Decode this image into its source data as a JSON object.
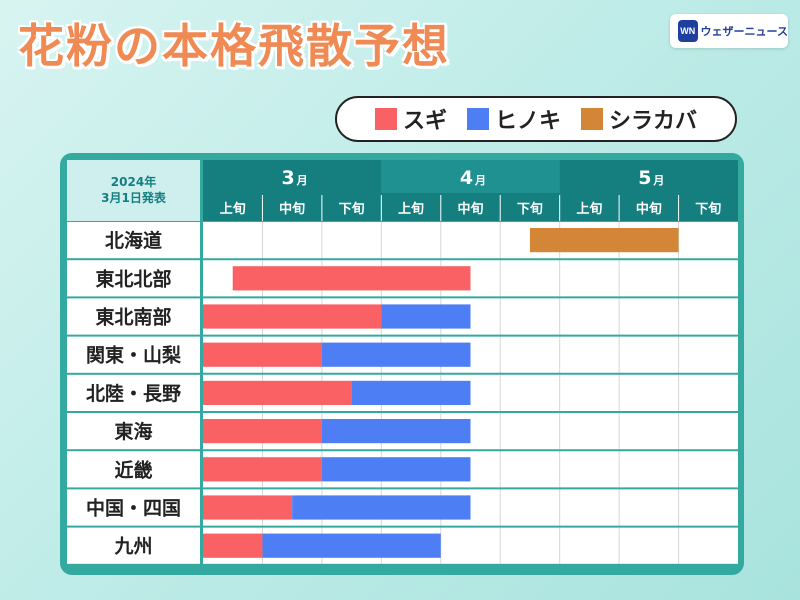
{
  "title": "花粉の本格飛散予想",
  "logo": {
    "mark": "WN",
    "text": "ウェザーニュース"
  },
  "published": {
    "line1": "2024年",
    "line2": "3月1日発表"
  },
  "colors": {
    "sugi": "#fa6165",
    "hinoki": "#4d7ef4",
    "shirakaba": "#d38736",
    "header": "#157f80",
    "accent": "#33a9a0",
    "title": "#ef8a55"
  },
  "chart_data": {
    "type": "bar",
    "orientation": "horizontal-timeline",
    "months": [
      "3",
      "4",
      "5"
    ],
    "month_unit": "月",
    "periods": [
      "上旬",
      "中旬",
      "下旬",
      "上旬",
      "中旬",
      "下旬",
      "上旬",
      "中旬",
      "下旬"
    ],
    "series": [
      {
        "name": "スギ",
        "color": "#fa6165"
      },
      {
        "name": "ヒノキ",
        "color": "#4d7ef4"
      },
      {
        "name": "シラカバ",
        "color": "#d38736"
      }
    ],
    "x_unit_note": "period index: 0 = 3月上旬 start, 9 = 5月下旬 end",
    "xlim": [
      0,
      9
    ],
    "regions": [
      {
        "name": "北海道",
        "bars": [
          {
            "series": "シラカバ",
            "start": 5.5,
            "end": 8.0
          }
        ]
      },
      {
        "name": "東北北部",
        "bars": [
          {
            "series": "スギ",
            "start": 0.5,
            "end": 4.5
          }
        ]
      },
      {
        "name": "東北南部",
        "bars": [
          {
            "series": "スギ",
            "start": 0,
            "end": 3.0
          },
          {
            "series": "ヒノキ",
            "start": 3.0,
            "end": 4.5
          }
        ]
      },
      {
        "name": "関東・山梨",
        "bars": [
          {
            "series": "スギ",
            "start": 0,
            "end": 2.0
          },
          {
            "series": "ヒノキ",
            "start": 2.0,
            "end": 4.5
          }
        ]
      },
      {
        "name": "北陸・長野",
        "bars": [
          {
            "series": "スギ",
            "start": 0,
            "end": 2.5
          },
          {
            "series": "ヒノキ",
            "start": 2.5,
            "end": 4.5
          }
        ]
      },
      {
        "name": "東海",
        "bars": [
          {
            "series": "スギ",
            "start": 0,
            "end": 2.0
          },
          {
            "series": "ヒノキ",
            "start": 2.0,
            "end": 4.5
          }
        ]
      },
      {
        "name": "近畿",
        "bars": [
          {
            "series": "スギ",
            "start": 0,
            "end": 2.0
          },
          {
            "series": "ヒノキ",
            "start": 2.0,
            "end": 4.5
          }
        ]
      },
      {
        "name": "中国・四国",
        "bars": [
          {
            "series": "スギ",
            "start": 0,
            "end": 1.5
          },
          {
            "series": "ヒノキ",
            "start": 1.5,
            "end": 4.5
          }
        ]
      },
      {
        "name": "九州",
        "bars": [
          {
            "series": "スギ",
            "start": 0,
            "end": 1.0
          },
          {
            "series": "ヒノキ",
            "start": 1.0,
            "end": 4.0
          }
        ]
      }
    ]
  }
}
